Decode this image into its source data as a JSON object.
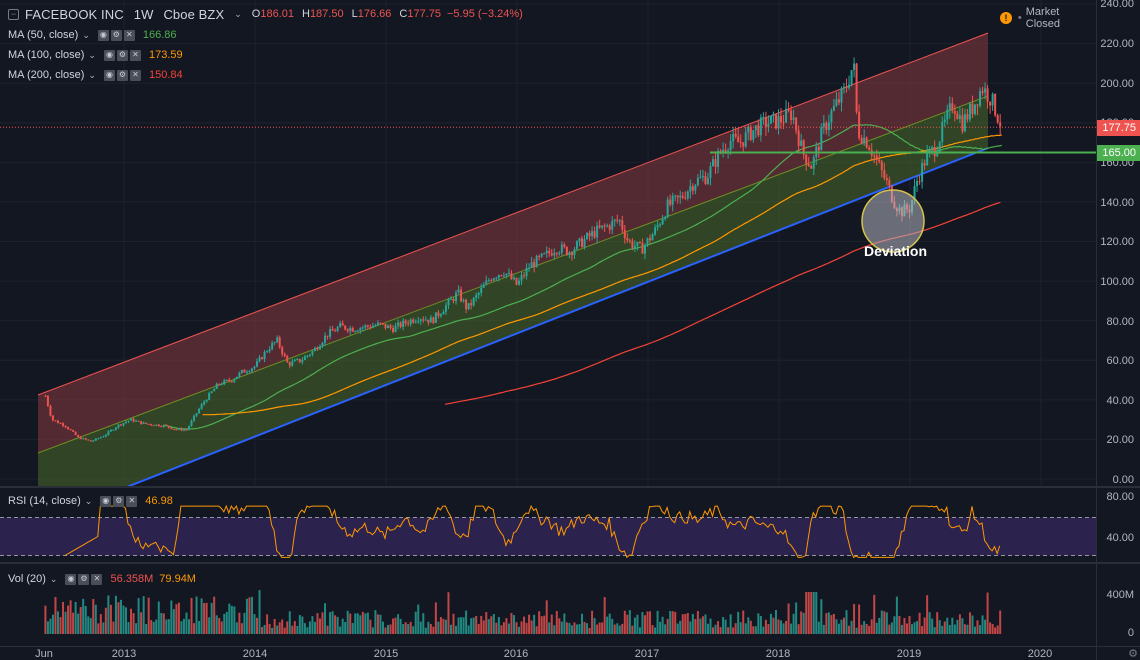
{
  "symbol": {
    "title": "FACEBOOK INC",
    "interval": "1W",
    "exchange": "Cboe BZX",
    "open_label": "O",
    "open": "186.01",
    "high_label": "H",
    "high": "187.50",
    "low_label": "L",
    "low": "176.66",
    "close_label": "C",
    "close": "177.75",
    "change": "−5.95 (−3.24%)"
  },
  "market_status": "Market Closed",
  "studies": [
    {
      "name": "MA (50, close)",
      "value": "166.86",
      "color": "#4caf50"
    },
    {
      "name": "MA (100, close)",
      "value": "173.59",
      "color": "#ff9800"
    },
    {
      "name": "MA (200, close)",
      "value": "150.84",
      "color": "#f44336"
    }
  ],
  "rsi": {
    "name": "RSI (14, close)",
    "value": "46.98",
    "color": "#ff9800"
  },
  "volume": {
    "name": "Vol (20)",
    "value1": "56.358M",
    "value2": "79.94M",
    "value1_color": "#ef5350",
    "value2_color": "#ff9800"
  },
  "annotation": "Deviation",
  "price_axis": {
    "ticks": [
      "240.00",
      "220.00",
      "200.00",
      "180.00",
      "160.00",
      "140.00",
      "120.00",
      "100.00",
      "80.00",
      "60.00",
      "40.00",
      "20.00",
      "0.00"
    ],
    "last_price": "177.75",
    "last_price_color": "#ef5350",
    "level": "165.00",
    "level_color": "#4caf50",
    "rsi_ticks": [
      "80.00",
      "40.00"
    ],
    "vol_ticks": [
      "400M",
      "0"
    ]
  },
  "time_axis": {
    "labels": [
      "Jun",
      "2013",
      "2014",
      "2015",
      "2016",
      "2017",
      "2018",
      "2019",
      "2020"
    ]
  },
  "colors": {
    "up": "#26a69a",
    "down": "#ef5350",
    "channel_upper_fill": "#8a3a40",
    "channel_lower_fill": "#4a6a2a",
    "channel_top_line": "#ef5350",
    "channel_mid_line": "#6b8e23",
    "channel_bottom_line": "#2962ff",
    "rsi_band": "#3c2a6a"
  },
  "chart_data": {
    "type": "candlestick",
    "title": "FACEBOOK INC · 1W · Cboe BZX",
    "ylim": [
      0,
      240
    ],
    "x_range": [
      2012.4,
      2020.5
    ],
    "price_path": [
      [
        2012.4,
        42
      ],
      [
        2012.45,
        30
      ],
      [
        2012.55,
        27
      ],
      [
        2012.65,
        21
      ],
      [
        2012.75,
        19
      ],
      [
        2012.85,
        22
      ],
      [
        2012.95,
        27
      ],
      [
        2013.05,
        30
      ],
      [
        2013.15,
        28
      ],
      [
        2013.3,
        27
      ],
      [
        2013.4,
        25
      ],
      [
        2013.48,
        25
      ],
      [
        2013.55,
        33
      ],
      [
        2013.62,
        40
      ],
      [
        2013.72,
        48
      ],
      [
        2013.82,
        50
      ],
      [
        2013.9,
        54
      ],
      [
        2014.0,
        57
      ],
      [
        2014.1,
        66
      ],
      [
        2014.17,
        70
      ],
      [
        2014.25,
        58
      ],
      [
        2014.35,
        60
      ],
      [
        2014.45,
        65
      ],
      [
        2014.55,
        73
      ],
      [
        2014.65,
        77
      ],
      [
        2014.75,
        76
      ],
      [
        2014.85,
        77
      ],
      [
        2014.95,
        78
      ],
      [
        2015.05,
        76
      ],
      [
        2015.15,
        79
      ],
      [
        2015.25,
        82
      ],
      [
        2015.35,
        80
      ],
      [
        2015.45,
        87
      ],
      [
        2015.55,
        94
      ],
      [
        2015.62,
        86
      ],
      [
        2015.7,
        93
      ],
      [
        2015.8,
        102
      ],
      [
        2015.9,
        105
      ],
      [
        2016.0,
        98
      ],
      [
        2016.1,
        108
      ],
      [
        2016.2,
        112
      ],
      [
        2016.3,
        117
      ],
      [
        2016.4,
        115
      ],
      [
        2016.5,
        120
      ],
      [
        2016.6,
        125
      ],
      [
        2016.7,
        128
      ],
      [
        2016.78,
        131
      ],
      [
        2016.85,
        120
      ],
      [
        2016.95,
        116
      ],
      [
        2017.05,
        125
      ],
      [
        2017.15,
        138
      ],
      [
        2017.25,
        142
      ],
      [
        2017.35,
        150
      ],
      [
        2017.45,
        153
      ],
      [
        2017.55,
        165
      ],
      [
        2017.62,
        171
      ],
      [
        2017.7,
        170
      ],
      [
        2017.8,
        176
      ],
      [
        2017.9,
        180
      ],
      [
        2018.0,
        181
      ],
      [
        2018.1,
        185
      ],
      [
        2018.18,
        165
      ],
      [
        2018.25,
        158
      ],
      [
        2018.33,
        175
      ],
      [
        2018.4,
        185
      ],
      [
        2018.5,
        196
      ],
      [
        2018.57,
        210
      ],
      [
        2018.6,
        176
      ],
      [
        2018.68,
        170
      ],
      [
        2018.75,
        160
      ],
      [
        2018.82,
        150
      ],
      [
        2018.88,
        140
      ],
      [
        2018.93,
        135
      ],
      [
        2019.0,
        137
      ],
      [
        2019.05,
        150
      ],
      [
        2019.12,
        162
      ],
      [
        2019.2,
        168
      ],
      [
        2019.28,
        182
      ],
      [
        2019.33,
        190
      ],
      [
        2019.4,
        180
      ],
      [
        2019.48,
        188
      ],
      [
        2019.55,
        198
      ],
      [
        2019.62,
        192
      ],
      [
        2019.66,
        185
      ],
      [
        2019.7,
        178
      ]
    ],
    "series": [
      {
        "name": "MA (50, close)",
        "last": 166.86
      },
      {
        "name": "MA (100, close)",
        "last": 173.59
      },
      {
        "name": "MA (200, close)",
        "last": 150.84
      }
    ],
    "horizontal_level": 165.0,
    "last_price": 177.75,
    "rsi_range": [
      40,
      80
    ],
    "rsi_last": 46.98,
    "volume_last": 56.358,
    "volume_ma": 79.94
  }
}
